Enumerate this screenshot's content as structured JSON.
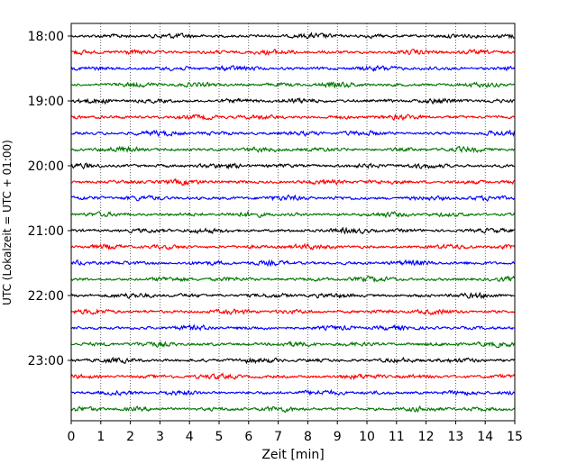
{
  "chart_data": {
    "type": "line",
    "title": "",
    "xlabel": "Zeit  [min]",
    "ylabel": "UTC (Lokalzeit = UTC + 01:00)",
    "xlim": [
      0,
      15
    ],
    "x_ticks": [
      "0",
      "1",
      "2",
      "3",
      "4",
      "5",
      "6",
      "7",
      "8",
      "9",
      "10",
      "11",
      "12",
      "13",
      "14",
      "15"
    ],
    "y_ticks": [
      "18:00",
      "19:00",
      "20:00",
      "21:00",
      "22:00",
      "23:00"
    ],
    "grid": "vertical dotted at each minute",
    "trace_minutes": 15,
    "traces_per_hour": 4,
    "row_colors": [
      "#000000",
      "#ff0000",
      "#0000ff",
      "#007700"
    ],
    "series": [
      {
        "label": "18:00",
        "color": "#000000"
      },
      {
        "label": "18:15",
        "color": "#ff0000"
      },
      {
        "label": "18:30",
        "color": "#0000ff"
      },
      {
        "label": "18:45",
        "color": "#007700"
      },
      {
        "label": "19:00",
        "color": "#000000"
      },
      {
        "label": "19:15",
        "color": "#ff0000"
      },
      {
        "label": "19:30",
        "color": "#0000ff"
      },
      {
        "label": "19:45",
        "color": "#007700"
      },
      {
        "label": "20:00",
        "color": "#000000"
      },
      {
        "label": "20:15",
        "color": "#ff0000"
      },
      {
        "label": "20:30",
        "color": "#0000ff"
      },
      {
        "label": "20:45",
        "color": "#007700"
      },
      {
        "label": "21:00",
        "color": "#000000"
      },
      {
        "label": "21:15",
        "color": "#ff0000"
      },
      {
        "label": "21:30",
        "color": "#0000ff"
      },
      {
        "label": "21:45",
        "color": "#007700"
      },
      {
        "label": "22:00",
        "color": "#000000"
      },
      {
        "label": "22:15",
        "color": "#ff0000"
      },
      {
        "label": "22:30",
        "color": "#0000ff"
      },
      {
        "label": "22:45",
        "color": "#007700"
      },
      {
        "label": "23:00",
        "color": "#000000"
      },
      {
        "label": "23:15",
        "color": "#ff0000"
      },
      {
        "label": "23:30",
        "color": "#0000ff"
      },
      {
        "label": "23:45",
        "color": "#007700"
      }
    ]
  }
}
